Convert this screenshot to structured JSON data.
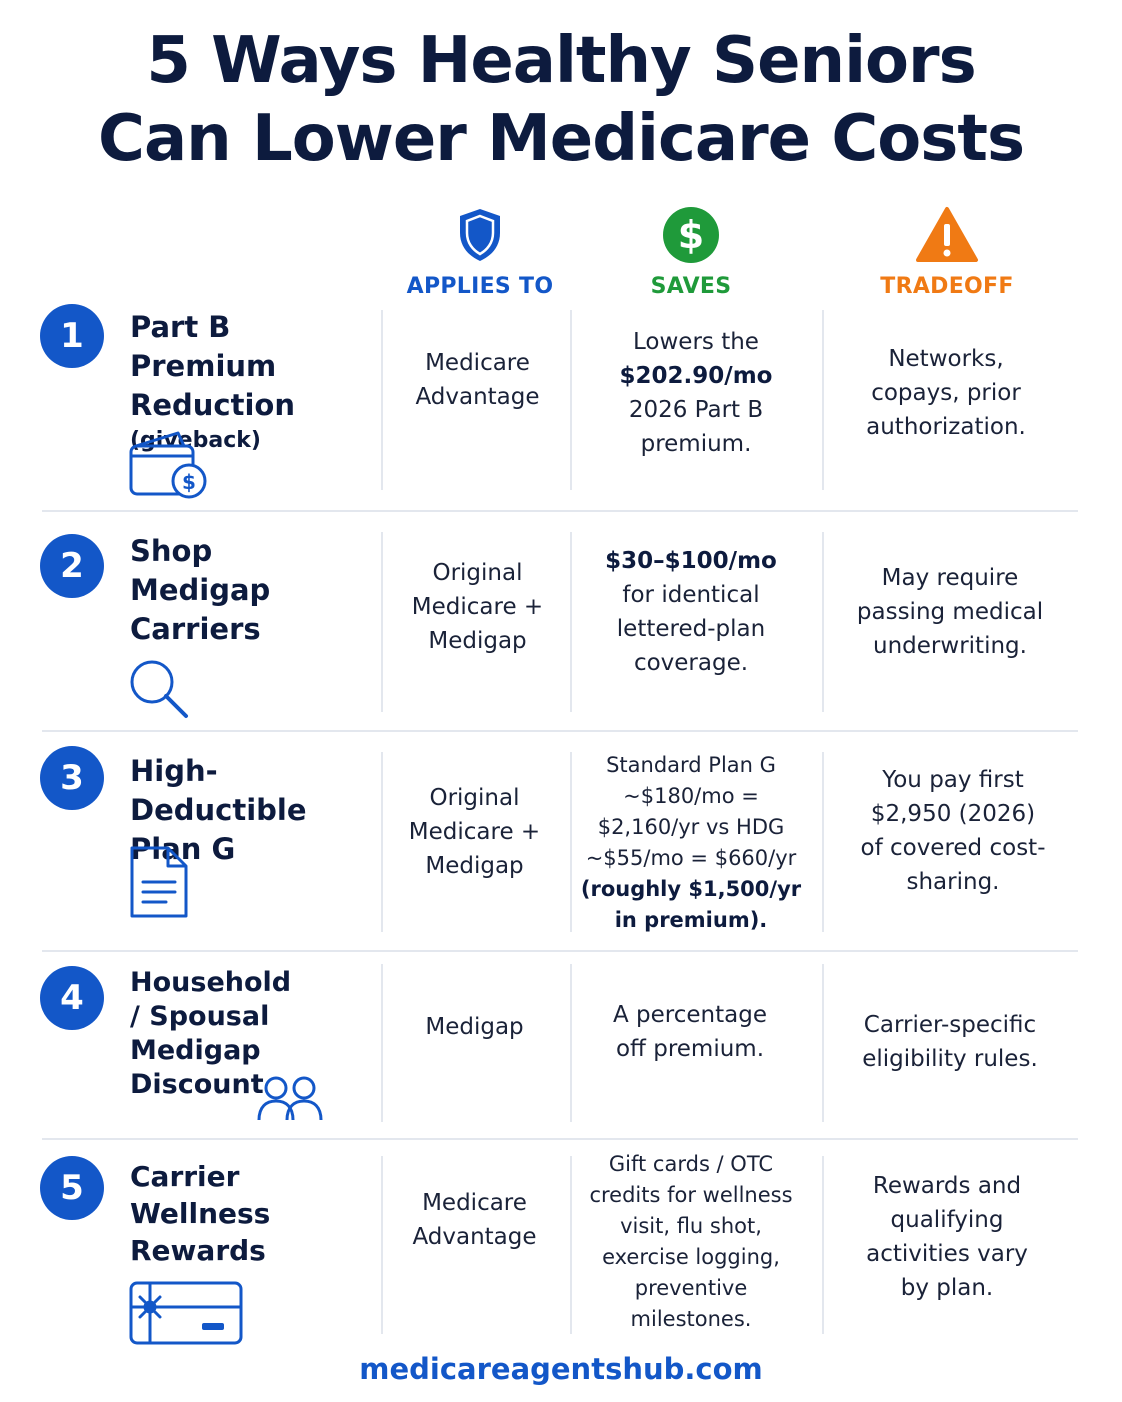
{
  "title_line1": "5 Ways Healthy Seniors",
  "title_line2": "Can Lower Medicare Costs",
  "columns": {
    "applies_to": "APPLIES TO",
    "saves": "SAVES",
    "tradeoff": "TRADEOFF"
  },
  "colors": {
    "navy": "#0d1b3e",
    "blue": "#1357c8",
    "green": "#1f9a3a",
    "orange": "#f07a14"
  },
  "rows": [
    {
      "number": "1",
      "title": "Part B Premium Reduction",
      "subtitle": "(giveback)",
      "icon": "wallet-dollar-icon",
      "applies_to": "Medicare Advantage",
      "saves_pre": "Lowers the",
      "saves_bold": "$202.90/mo",
      "saves_post": "2026 Part B premium.",
      "tradeoff": "Networks, copays, prior authorization."
    },
    {
      "number": "2",
      "title": "Shop Medigap Carriers",
      "icon": "magnifier-icon",
      "applies_to": "Original Medicare + Medigap",
      "saves_bold": "$30–$100/mo",
      "saves_post": "for identical lettered-plan coverage.",
      "tradeoff": "May require passing medical underwriting."
    },
    {
      "number": "3",
      "title": "High-Deductible Plan G",
      "icon": "document-icon",
      "applies_to": "Original Medicare + Medigap",
      "saves_pre": "Standard Plan G ~$180/mo = $2,160/yr vs HDG ~$55/mo = $660/yr",
      "saves_bold": "(roughly $1,500/yr in premium).",
      "tradeoff": "You pay first $2,950 (2026) of covered cost-sharing."
    },
    {
      "number": "4",
      "title": "Household / Spousal Medigap Discount",
      "icon": "two-people-icon",
      "applies_to": "Medigap",
      "saves_pre": "A percentage off premium.",
      "tradeoff": "Carrier-specific eligibility rules."
    },
    {
      "number": "5",
      "title": "Carrier Wellness Rewards",
      "icon": "gift-card-icon",
      "applies_to": "Medicare Advantage",
      "saves_pre": "Gift cards / OTC credits for wellness visit, flu shot, exercise logging, preventive milestones.",
      "tradeoff": "Rewards and qualifying activities vary by plan."
    }
  ],
  "footer": "medicareagentshub.com"
}
